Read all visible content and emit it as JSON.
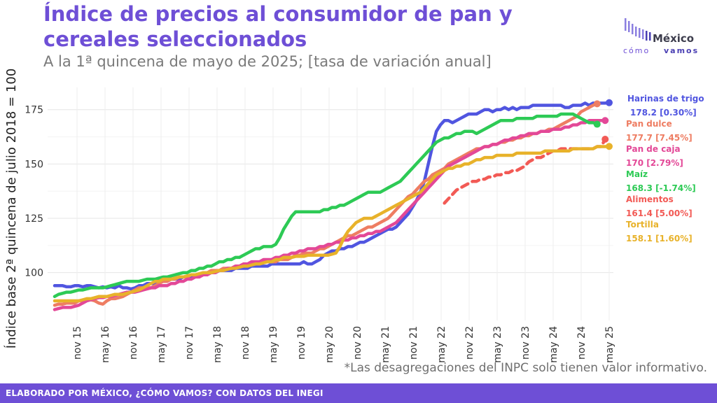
{
  "title": "Índice de precios al consumidor de pan y cereales seleccionados",
  "subtitle": "A la 1ª quincena de mayo de 2025; [tasa de variación anual]",
  "note": "*Las desagregaciones del INPC solo tienen valor informativo.",
  "footer": "ELABORADO POR MÉXICO, ¿CÓMO VAMOS? CON DATOS DEL INEGI",
  "logo": {
    "line1": "México",
    "line2_a": "cómo",
    "line2_b": "vamos"
  },
  "chart_data": {
    "type": "line",
    "ylabel": "Índice base 2ª quincena de julio 2018 = 100",
    "xlabel": "",
    "x_ticks": [
      "nov 15",
      "may 16",
      "nov 16",
      "may 17",
      "nov 17",
      "may 18",
      "nov 18",
      "may 19",
      "nov 19",
      "may 20",
      "nov 20",
      "may 21",
      "nov 21",
      "may 22",
      "nov 22",
      "may 23",
      "nov 23",
      "may 24",
      "nov 24",
      "may 25"
    ],
    "y_ticks": [
      100,
      125,
      150,
      175
    ],
    "ylim": [
      78,
      182
    ],
    "grid": true,
    "legend_position": "right",
    "series": [
      {
        "name": "Harinas de trigo",
        "label": "178.2 [0.30%]",
        "color": "#5055e0",
        "dash": false,
        "values": [
          94,
          94,
          94,
          93.5,
          93.5,
          94,
          94,
          93.5,
          94,
          94,
          93.5,
          93,
          93.5,
          93,
          93.5,
          93,
          94,
          93,
          93,
          92.5,
          93,
          94,
          94,
          95,
          95,
          95,
          96,
          96,
          96,
          97,
          97,
          97,
          98,
          98,
          98,
          99,
          99,
          99,
          100,
          100,
          100,
          101,
          101,
          101,
          101,
          102,
          102,
          102,
          102,
          103,
          103,
          103,
          103,
          103,
          104,
          104,
          104,
          104,
          104,
          104,
          104,
          104,
          105,
          104,
          104,
          105,
          106,
          108,
          109,
          110,
          110,
          111,
          111,
          112,
          112,
          113,
          114,
          114,
          115,
          116,
          117,
          118,
          119,
          120,
          120,
          121,
          123,
          125,
          127,
          130,
          133,
          137,
          142,
          150,
          158,
          165,
          168,
          170,
          170,
          169,
          170,
          171,
          172,
          173,
          173,
          173,
          174,
          175,
          175,
          174,
          175,
          175,
          176,
          175,
          176,
          175,
          176,
          176,
          176,
          177,
          177,
          177,
          177,
          177,
          177,
          177,
          177,
          176,
          176,
          177,
          177,
          177,
          178,
          177,
          178,
          178,
          178,
          178,
          178.2
        ]
      },
      {
        "name": "Pan dulce",
        "label": "177.7 [7.45%]",
        "color": "#ee7d62",
        "dash": false,
        "values": [
          85,
          85.5,
          85.5,
          86,
          86,
          86,
          87,
          87,
          87.5,
          87.5,
          87,
          86,
          85.5,
          87,
          88,
          88,
          88.5,
          89,
          90,
          91,
          92,
          93,
          93,
          93,
          93,
          94,
          95,
          96,
          96,
          97,
          97,
          98,
          98,
          98,
          99,
          99,
          99,
          100,
          100,
          101,
          101,
          101,
          102,
          102,
          102,
          103,
          103,
          104,
          104,
          104,
          104,
          104,
          105,
          105,
          105,
          105,
          106,
          106,
          106,
          107,
          108,
          108,
          109,
          109,
          109,
          110,
          111,
          111,
          112,
          113,
          114,
          115,
          116,
          117,
          117,
          118,
          119,
          120,
          121,
          121,
          122,
          123,
          124,
          125,
          127,
          129,
          131,
          133,
          135,
          136,
          138,
          140,
          142,
          143,
          145,
          146,
          147,
          148,
          150,
          151,
          152,
          153,
          154,
          155,
          156,
          157,
          157,
          158,
          158,
          159,
          159,
          160,
          160,
          161,
          161,
          162,
          162,
          163,
          163,
          164,
          164,
          165,
          165,
          166,
          166,
          167,
          168,
          169,
          170,
          171,
          172,
          174,
          175,
          176,
          177,
          177.7
        ]
      },
      {
        "name": "Pan de caja",
        "label": "170 [2.79%]",
        "color": "#e34897",
        "dash": false,
        "values": [
          83,
          83.5,
          84,
          84,
          84,
          84.5,
          85,
          86,
          87,
          87.5,
          88,
          88.5,
          88.5,
          89,
          89,
          89.5,
          90,
          90.5,
          91,
          91,
          91,
          91.5,
          92,
          92.5,
          93,
          93,
          94,
          94,
          94,
          95,
          95,
          96,
          96,
          97,
          97,
          98,
          98,
          99,
          99,
          100,
          100,
          101,
          101,
          102,
          102,
          103,
          103,
          104,
          104,
          105,
          105,
          105,
          106,
          106,
          106,
          107,
          107,
          108,
          108,
          109,
          109,
          110,
          110,
          111,
          111,
          111,
          112,
          112,
          113,
          113,
          114,
          114,
          115,
          115,
          116,
          116,
          117,
          117,
          118,
          118,
          119,
          119,
          120,
          121,
          122,
          123,
          125,
          127,
          129,
          131,
          133,
          135,
          137,
          139,
          141,
          143,
          145,
          147,
          149,
          150,
          151,
          152,
          153,
          154,
          155,
          156,
          157,
          158,
          158,
          159,
          159,
          160,
          161,
          161,
          162,
          162,
          163,
          163,
          164,
          164,
          164,
          165,
          165,
          165,
          166,
          166,
          166,
          167,
          167,
          168,
          168,
          169,
          169,
          170,
          170,
          170,
          170,
          170
        ]
      },
      {
        "name": "Maíz",
        "label": "168.3 [-1.74%]",
        "color": "#2dca55",
        "dash": false,
        "values": [
          89,
          90,
          90.5,
          91,
          91,
          91.5,
          92,
          92,
          92.5,
          93,
          93,
          93,
          93,
          93.5,
          94,
          94.5,
          95,
          95.5,
          96,
          96,
          96,
          96,
          96.5,
          97,
          97,
          97,
          97.5,
          98,
          98,
          98.5,
          99,
          99.5,
          100,
          100,
          101,
          101,
          102,
          102,
          103,
          103,
          104,
          105,
          105,
          106,
          106,
          107,
          107,
          108,
          109,
          110,
          111,
          111,
          112,
          112,
          112,
          113,
          116,
          120,
          123,
          126,
          128,
          128,
          128,
          128,
          128,
          128,
          128,
          129,
          129,
          130,
          130,
          131,
          131,
          132,
          133,
          134,
          135,
          136,
          137,
          137,
          137,
          137,
          138,
          139,
          140,
          141,
          142,
          144,
          146,
          148,
          150,
          152,
          154,
          156,
          158,
          160,
          161,
          162,
          162,
          163,
          164,
          164,
          165,
          165,
          165,
          164,
          165,
          166,
          167,
          168,
          169,
          170,
          170,
          170,
          170,
          171,
          171,
          171,
          171,
          171,
          172,
          172,
          172,
          172,
          172,
          172,
          173,
          173,
          173,
          173,
          172,
          171,
          170,
          169,
          169,
          168.3
        ]
      },
      {
        "name": "Alimentos",
        "label": "161.4 [5.00%]",
        "color": "#f25a55",
        "dash": true,
        "values": [
          null,
          null,
          null,
          null,
          null,
          null,
          null,
          null,
          null,
          null,
          null,
          null,
          null,
          null,
          null,
          null,
          null,
          null,
          null,
          null,
          null,
          null,
          null,
          null,
          null,
          null,
          null,
          null,
          null,
          null,
          null,
          null,
          null,
          null,
          null,
          null,
          null,
          null,
          null,
          null,
          null,
          null,
          null,
          null,
          null,
          null,
          null,
          null,
          null,
          null,
          null,
          null,
          null,
          null,
          null,
          null,
          null,
          null,
          null,
          null,
          null,
          null,
          null,
          null,
          null,
          null,
          null,
          null,
          null,
          null,
          null,
          null,
          null,
          null,
          null,
          null,
          null,
          null,
          null,
          null,
          null,
          null,
          null,
          null,
          null,
          null,
          null,
          null,
          null,
          null,
          null,
          null,
          null,
          null,
          null,
          null,
          null,
          132,
          134,
          136,
          138,
          139,
          140,
          141,
          142,
          142,
          143,
          143,
          144,
          144,
          145,
          145,
          146,
          146,
          147,
          147,
          148,
          149,
          151,
          152,
          153,
          153,
          154,
          155,
          156,
          156,
          157,
          157,
          157,
          157,
          157,
          157,
          157,
          157,
          157,
          158,
          158,
          161.4
        ]
      },
      {
        "name": "Tortilla",
        "label": "158.1 [1.60%]",
        "color": "#e8b22a",
        "dash": false,
        "values": [
          87,
          87,
          87,
          87,
          87,
          87,
          87,
          87.5,
          88,
          88,
          88.5,
          89,
          89,
          89,
          89.5,
          90,
          90,
          90,
          90.5,
          91,
          91.5,
          92,
          93,
          94,
          95,
          96,
          96,
          97,
          97,
          97,
          97.5,
          98,
          98,
          98.5,
          99,
          99,
          99.5,
          100,
          100,
          100,
          100.5,
          101,
          101,
          101.5,
          102,
          102,
          102.5,
          103,
          103,
          103.5,
          104,
          104,
          104.5,
          105,
          105,
          106,
          106,
          107,
          107,
          107,
          107.5,
          107.5,
          107.5,
          108,
          108,
          108,
          108,
          108,
          108,
          108.5,
          109,
          112,
          116,
          119,
          121,
          123,
          124,
          125,
          125,
          125,
          126,
          127,
          128,
          129,
          130,
          131,
          132,
          133,
          134,
          135,
          136,
          137,
          139,
          141,
          143,
          145,
          146,
          147,
          148,
          148,
          149,
          149,
          150,
          150,
          151,
          152,
          152,
          153,
          153,
          153,
          154,
          154,
          154,
          154,
          154,
          155,
          155,
          155,
          155,
          155,
          155,
          155,
          156,
          156,
          156,
          156,
          156,
          156,
          156,
          157,
          157,
          157,
          157,
          157,
          157,
          158,
          158,
          158,
          158.1
        ]
      }
    ]
  }
}
